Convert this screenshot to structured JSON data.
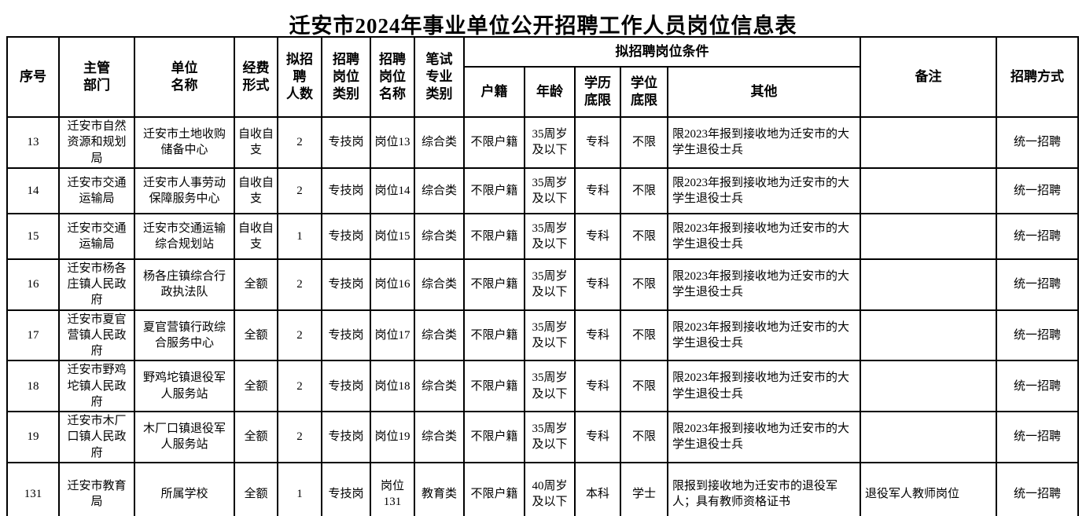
{
  "title": "迁安市2024年事业单位公开招聘工作人员岗位信息表",
  "header": {
    "seq": "序号",
    "dept": "主管\n部门",
    "unit": "单位\n名称",
    "funding": "经费\n形式",
    "count": "拟招\n聘\n人数",
    "category": "招聘\n岗位\n类别",
    "post": "招聘\n岗位\n名称",
    "exam": "笔试\n专业\n类别",
    "conditions_group": "拟招聘岗位条件",
    "hukou": "户籍",
    "age": "年龄",
    "edu": "学历\n底限",
    "degree": "学位\n底限",
    "other": "其他",
    "remark": "备注",
    "method": "招聘方式"
  },
  "rows": [
    {
      "seq": "13",
      "dept": "迁安市自然资源和规划局",
      "unit": "迁安市土地收购储备中心",
      "funding": "自收自支",
      "count": "2",
      "category": "专技岗",
      "post": "岗位13",
      "exam": "综合类",
      "hukou": "不限户籍",
      "age": "35周岁及以下",
      "edu": "专科",
      "degree": "不限",
      "other": "限2023年报到接收地为迁安市的大学生退役士兵",
      "remark": "",
      "method": "统一招聘"
    },
    {
      "seq": "14",
      "dept": "迁安市交通运输局",
      "unit": "迁安市人事劳动保障服务中心",
      "funding": "自收自支",
      "count": "2",
      "category": "专技岗",
      "post": "岗位14",
      "exam": "综合类",
      "hukou": "不限户籍",
      "age": "35周岁及以下",
      "edu": "专科",
      "degree": "不限",
      "other": "限2023年报到接收地为迁安市的大学生退役士兵",
      "remark": "",
      "method": "统一招聘"
    },
    {
      "seq": "15",
      "dept": "迁安市交通运输局",
      "unit": "迁安市交通运输综合规划站",
      "funding": "自收自支",
      "count": "1",
      "category": "专技岗",
      "post": "岗位15",
      "exam": "综合类",
      "hukou": "不限户籍",
      "age": "35周岁及以下",
      "edu": "专科",
      "degree": "不限",
      "other": "限2023年报到接收地为迁安市的大学生退役士兵",
      "remark": "",
      "method": "统一招聘"
    },
    {
      "seq": "16",
      "dept": "迁安市杨各庄镇人民政府",
      "unit": "杨各庄镇综合行政执法队",
      "funding": "全额",
      "count": "2",
      "category": "专技岗",
      "post": "岗位16",
      "exam": "综合类",
      "hukou": "不限户籍",
      "age": "35周岁及以下",
      "edu": "专科",
      "degree": "不限",
      "other": "限2023年报到接收地为迁安市的大学生退役士兵",
      "remark": "",
      "method": "统一招聘"
    },
    {
      "seq": "17",
      "dept": "迁安市夏官营镇人民政府",
      "unit": "夏官营镇行政综合服务中心",
      "funding": "全额",
      "count": "2",
      "category": "专技岗",
      "post": "岗位17",
      "exam": "综合类",
      "hukou": "不限户籍",
      "age": "35周岁及以下",
      "edu": "专科",
      "degree": "不限",
      "other": "限2023年报到接收地为迁安市的大学生退役士兵",
      "remark": "",
      "method": "统一招聘"
    },
    {
      "seq": "18",
      "dept": "迁安市野鸡坨镇人民政府",
      "unit": "野鸡坨镇退役军人服务站",
      "funding": "全额",
      "count": "2",
      "category": "专技岗",
      "post": "岗位18",
      "exam": "综合类",
      "hukou": "不限户籍",
      "age": "35周岁及以下",
      "edu": "专科",
      "degree": "不限",
      "other": "限2023年报到接收地为迁安市的大学生退役士兵",
      "remark": "",
      "method": "统一招聘"
    },
    {
      "seq": "19",
      "dept": "迁安市木厂口镇人民政府",
      "unit": "木厂口镇退役军人服务站",
      "funding": "全额",
      "count": "2",
      "category": "专技岗",
      "post": "岗位19",
      "exam": "综合类",
      "hukou": "不限户籍",
      "age": "35周岁及以下",
      "edu": "专科",
      "degree": "不限",
      "other": "限2023年报到接收地为迁安市的大学生退役士兵",
      "remark": "",
      "method": "统一招聘"
    },
    {
      "seq": "131",
      "dept": "迁安市教育局",
      "unit": "所属学校",
      "funding": "全额",
      "count": "1",
      "category": "专技岗",
      "post": "岗位131",
      "exam": "教育类",
      "hukou": "不限户籍",
      "age": "40周岁及以下",
      "edu": "本科",
      "degree": "学士",
      "other": "限报到接收地为迁安市的退役军人；具有教师资格证书",
      "remark": "退役军人教师岗位",
      "method": "统一招聘"
    }
  ]
}
